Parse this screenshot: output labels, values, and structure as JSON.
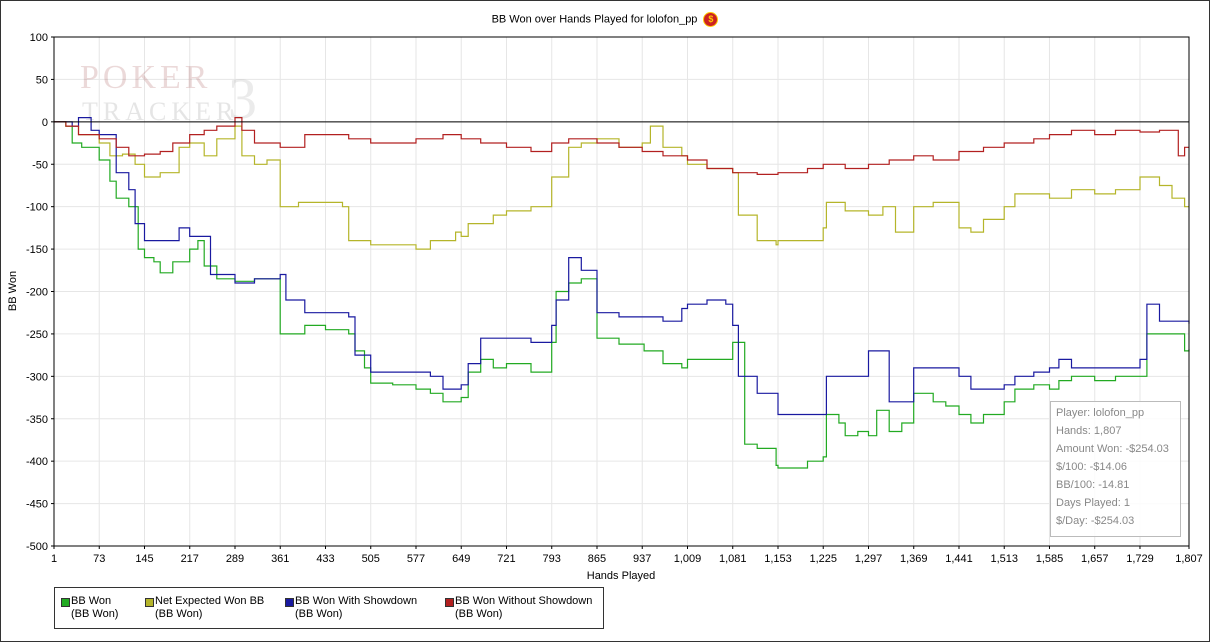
{
  "chart_data": {
    "type": "line",
    "title": "BB Won over Hands Played for lolofon_pp",
    "xlabel": "Hands Played",
    "ylabel": "BB Won",
    "xlim": [
      1,
      1807
    ],
    "ylim": [
      -500,
      100
    ],
    "x_ticks": [
      "1",
      "73",
      "145",
      "217",
      "289",
      "361",
      "433",
      "505",
      "577",
      "649",
      "721",
      "793",
      "865",
      "937",
      "1,009",
      "1,081",
      "1,153",
      "1,225",
      "1,297",
      "1,369",
      "1,441",
      "1,513",
      "1,585",
      "1,657",
      "1,729",
      "1,807"
    ],
    "y_ticks": [
      "100",
      "50",
      "0",
      "-50",
      "-100",
      "-150",
      "-200",
      "-250",
      "-300",
      "-350",
      "-400",
      "-450",
      "-500"
    ],
    "grid": true,
    "legend_position": "bottom-left",
    "series": [
      {
        "name": "BB Won",
        "unit": "(BB Won)",
        "color": "#22aa22",
        "points": [
          [
            1,
            0
          ],
          [
            20,
            -5
          ],
          [
            30,
            -25
          ],
          [
            45,
            -30
          ],
          [
            73,
            -45
          ],
          [
            90,
            -70
          ],
          [
            100,
            -90
          ],
          [
            120,
            -100
          ],
          [
            135,
            -150
          ],
          [
            145,
            -160
          ],
          [
            160,
            -165
          ],
          [
            170,
            -178
          ],
          [
            190,
            -165
          ],
          [
            217,
            -150
          ],
          [
            230,
            -140
          ],
          [
            240,
            -170
          ],
          [
            260,
            -185
          ],
          [
            289,
            -188
          ],
          [
            320,
            -185
          ],
          [
            361,
            -250
          ],
          [
            400,
            -240
          ],
          [
            433,
            -245
          ],
          [
            470,
            -250
          ],
          [
            480,
            -270
          ],
          [
            495,
            -290
          ],
          [
            505,
            -308
          ],
          [
            540,
            -310
          ],
          [
            577,
            -315
          ],
          [
            600,
            -320
          ],
          [
            620,
            -330
          ],
          [
            649,
            -325
          ],
          [
            660,
            -295
          ],
          [
            680,
            -280
          ],
          [
            700,
            -290
          ],
          [
            721,
            -285
          ],
          [
            760,
            -295
          ],
          [
            793,
            -260
          ],
          [
            800,
            -200
          ],
          [
            820,
            -190
          ],
          [
            840,
            -185
          ],
          [
            865,
            -255
          ],
          [
            900,
            -262
          ],
          [
            937,
            -262
          ],
          [
            940,
            -270
          ],
          [
            970,
            -285
          ],
          [
            1000,
            -290
          ],
          [
            1009,
            -280
          ],
          [
            1040,
            -280
          ],
          [
            1081,
            -260
          ],
          [
            1100,
            -380
          ],
          [
            1120,
            -385
          ],
          [
            1150,
            -405
          ],
          [
            1153,
            -408
          ],
          [
            1200,
            -400
          ],
          [
            1225,
            -395
          ],
          [
            1230,
            -345
          ],
          [
            1250,
            -355
          ],
          [
            1260,
            -370
          ],
          [
            1280,
            -365
          ],
          [
            1297,
            -370
          ],
          [
            1310,
            -340
          ],
          [
            1330,
            -365
          ],
          [
            1350,
            -355
          ],
          [
            1369,
            -320
          ],
          [
            1400,
            -330
          ],
          [
            1420,
            -335
          ],
          [
            1441,
            -345
          ],
          [
            1460,
            -355
          ],
          [
            1480,
            -345
          ],
          [
            1513,
            -330
          ],
          [
            1530,
            -315
          ],
          [
            1560,
            -310
          ],
          [
            1585,
            -315
          ],
          [
            1600,
            -305
          ],
          [
            1620,
            -300
          ],
          [
            1657,
            -305
          ],
          [
            1690,
            -300
          ],
          [
            1729,
            -300
          ],
          [
            1740,
            -250
          ],
          [
            1780,
            -250
          ],
          [
            1800,
            -270
          ],
          [
            1807,
            -268
          ]
        ]
      },
      {
        "name": "Net Expected Won BB",
        "unit": "(BB Won)",
        "color": "#b5b52a",
        "points": [
          [
            1,
            0
          ],
          [
            20,
            -5
          ],
          [
            40,
            -15
          ],
          [
            73,
            -25
          ],
          [
            90,
            -40
          ],
          [
            110,
            -38
          ],
          [
            130,
            -50
          ],
          [
            145,
            -65
          ],
          [
            170,
            -60
          ],
          [
            200,
            -30
          ],
          [
            217,
            -25
          ],
          [
            240,
            -40
          ],
          [
            260,
            -20
          ],
          [
            289,
            -5
          ],
          [
            300,
            -40
          ],
          [
            320,
            -50
          ],
          [
            340,
            -45
          ],
          [
            361,
            -100
          ],
          [
            390,
            -95
          ],
          [
            433,
            -95
          ],
          [
            460,
            -100
          ],
          [
            470,
            -140
          ],
          [
            505,
            -145
          ],
          [
            540,
            -145
          ],
          [
            577,
            -150
          ],
          [
            600,
            -140
          ],
          [
            640,
            -130
          ],
          [
            649,
            -135
          ],
          [
            660,
            -120
          ],
          [
            700,
            -110
          ],
          [
            721,
            -105
          ],
          [
            760,
            -100
          ],
          [
            793,
            -65
          ],
          [
            820,
            -30
          ],
          [
            840,
            -25
          ],
          [
            865,
            -20
          ],
          [
            900,
            -30
          ],
          [
            937,
            -25
          ],
          [
            950,
            -5
          ],
          [
            970,
            -30
          ],
          [
            1000,
            -40
          ],
          [
            1009,
            -50
          ],
          [
            1040,
            -55
          ],
          [
            1081,
            -60
          ],
          [
            1090,
            -110
          ],
          [
            1120,
            -140
          ],
          [
            1150,
            -145
          ],
          [
            1153,
            -140
          ],
          [
            1180,
            -140
          ],
          [
            1225,
            -125
          ],
          [
            1230,
            -95
          ],
          [
            1260,
            -105
          ],
          [
            1297,
            -110
          ],
          [
            1320,
            -100
          ],
          [
            1340,
            -130
          ],
          [
            1369,
            -100
          ],
          [
            1400,
            -95
          ],
          [
            1441,
            -125
          ],
          [
            1460,
            -130
          ],
          [
            1480,
            -115
          ],
          [
            1513,
            -100
          ],
          [
            1530,
            -85
          ],
          [
            1560,
            -85
          ],
          [
            1585,
            -90
          ],
          [
            1620,
            -80
          ],
          [
            1657,
            -85
          ],
          [
            1690,
            -80
          ],
          [
            1729,
            -65
          ],
          [
            1760,
            -75
          ],
          [
            1780,
            -90
          ],
          [
            1800,
            -100
          ],
          [
            1807,
            -100
          ]
        ]
      },
      {
        "name": "BB Won With Showdown",
        "unit": "(BB Won)",
        "color": "#1a1aa0",
        "points": [
          [
            1,
            0
          ],
          [
            30,
            -5
          ],
          [
            40,
            5
          ],
          [
            60,
            -10
          ],
          [
            73,
            -15
          ],
          [
            100,
            -60
          ],
          [
            120,
            -80
          ],
          [
            130,
            -120
          ],
          [
            145,
            -140
          ],
          [
            200,
            -125
          ],
          [
            217,
            -135
          ],
          [
            250,
            -180
          ],
          [
            289,
            -190
          ],
          [
            320,
            -185
          ],
          [
            361,
            -180
          ],
          [
            370,
            -210
          ],
          [
            400,
            -225
          ],
          [
            433,
            -225
          ],
          [
            470,
            -230
          ],
          [
            480,
            -275
          ],
          [
            505,
            -295
          ],
          [
            550,
            -295
          ],
          [
            577,
            -295
          ],
          [
            600,
            -300
          ],
          [
            620,
            -315
          ],
          [
            649,
            -310
          ],
          [
            660,
            -285
          ],
          [
            680,
            -255
          ],
          [
            721,
            -255
          ],
          [
            760,
            -260
          ],
          [
            793,
            -240
          ],
          [
            800,
            -210
          ],
          [
            820,
            -160
          ],
          [
            840,
            -175
          ],
          [
            865,
            -225
          ],
          [
            900,
            -230
          ],
          [
            937,
            -230
          ],
          [
            970,
            -235
          ],
          [
            1000,
            -220
          ],
          [
            1009,
            -215
          ],
          [
            1040,
            -210
          ],
          [
            1070,
            -215
          ],
          [
            1081,
            -240
          ],
          [
            1090,
            -300
          ],
          [
            1120,
            -320
          ],
          [
            1153,
            -345
          ],
          [
            1225,
            -345
          ],
          [
            1230,
            -300
          ],
          [
            1260,
            -300
          ],
          [
            1297,
            -270
          ],
          [
            1310,
            -270
          ],
          [
            1330,
            -330
          ],
          [
            1369,
            -290
          ],
          [
            1441,
            -300
          ],
          [
            1460,
            -315
          ],
          [
            1480,
            -315
          ],
          [
            1513,
            -310
          ],
          [
            1530,
            -300
          ],
          [
            1560,
            -295
          ],
          [
            1585,
            -290
          ],
          [
            1600,
            -280
          ],
          [
            1620,
            -290
          ],
          [
            1657,
            -290
          ],
          [
            1690,
            -290
          ],
          [
            1729,
            -280
          ],
          [
            1740,
            -215
          ],
          [
            1760,
            -235
          ],
          [
            1807,
            -238
          ]
        ]
      },
      {
        "name": "BB Won Without Showdown",
        "unit": "(BB Won)",
        "color": "#b22020",
        "points": [
          [
            1,
            0
          ],
          [
            20,
            -5
          ],
          [
            40,
            -15
          ],
          [
            73,
            -20
          ],
          [
            100,
            -30
          ],
          [
            120,
            -40
          ],
          [
            145,
            -38
          ],
          [
            170,
            -35
          ],
          [
            190,
            -25
          ],
          [
            217,
            -15
          ],
          [
            240,
            -10
          ],
          [
            260,
            -5
          ],
          [
            289,
            5
          ],
          [
            300,
            -10
          ],
          [
            320,
            -25
          ],
          [
            361,
            -30
          ],
          [
            400,
            -15
          ],
          [
            433,
            -15
          ],
          [
            470,
            -20
          ],
          [
            505,
            -25
          ],
          [
            540,
            -25
          ],
          [
            577,
            -20
          ],
          [
            620,
            -15
          ],
          [
            649,
            -20
          ],
          [
            680,
            -25
          ],
          [
            721,
            -30
          ],
          [
            760,
            -35
          ],
          [
            793,
            -25
          ],
          [
            820,
            -20
          ],
          [
            865,
            -25
          ],
          [
            900,
            -30
          ],
          [
            937,
            -35
          ],
          [
            970,
            -40
          ],
          [
            1009,
            -45
          ],
          [
            1040,
            -55
          ],
          [
            1081,
            -60
          ],
          [
            1120,
            -62
          ],
          [
            1153,
            -60
          ],
          [
            1200,
            -55
          ],
          [
            1225,
            -50
          ],
          [
            1260,
            -55
          ],
          [
            1297,
            -50
          ],
          [
            1330,
            -45
          ],
          [
            1369,
            -40
          ],
          [
            1400,
            -45
          ],
          [
            1441,
            -35
          ],
          [
            1480,
            -30
          ],
          [
            1513,
            -25
          ],
          [
            1560,
            -20
          ],
          [
            1585,
            -15
          ],
          [
            1600,
            -15
          ],
          [
            1620,
            -10
          ],
          [
            1657,
            -15
          ],
          [
            1690,
            -10
          ],
          [
            1729,
            -12
          ],
          [
            1760,
            -10
          ],
          [
            1780,
            -10
          ],
          [
            1790,
            -40
          ],
          [
            1800,
            -30
          ],
          [
            1807,
            -30
          ]
        ]
      }
    ]
  },
  "watermark": "POKER TRACKER 3",
  "info": {
    "player": "Player: lolofon_pp",
    "hands": "Hands: 1,807",
    "amount_won": "Amount Won: -$254.03",
    "per_100": "$/100: -$14.06",
    "bb_per_100": "BB/100: -14.81",
    "days_played": "Days Played: 1",
    "per_day": "$/Day: -$254.03"
  },
  "legend": [
    {
      "label": "BB Won",
      "unit": "(BB Won)",
      "color": "#22aa22"
    },
    {
      "label": "Net Expected Won BB",
      "unit": "(BB Won)",
      "color": "#b5b52a"
    },
    {
      "label": "BB Won With Showdown",
      "unit": "(BB Won)",
      "color": "#1a1aa0"
    },
    {
      "label": "BB Won Without Showdown",
      "unit": "(BB Won)",
      "color": "#b22020"
    }
  ]
}
